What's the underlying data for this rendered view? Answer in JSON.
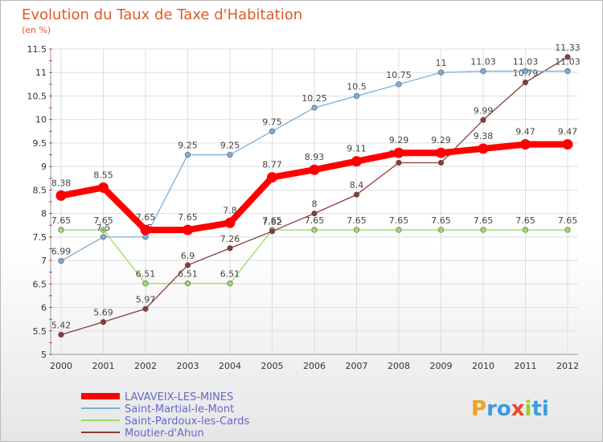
{
  "chart_data": {
    "type": "line",
    "title": "Evolution du Taux de Taxe d'Habitation",
    "subtitle": "(en %)",
    "x": [
      "2000",
      "2001",
      "2002",
      "2003",
      "2004",
      "2005",
      "2006",
      "2007",
      "2008",
      "2009",
      "2010",
      "2011",
      "2012"
    ],
    "y_ticks": [
      "5",
      "5.5",
      "6",
      "6.5",
      "7",
      "7.5",
      "8",
      "8.5",
      "9",
      "9.5",
      "10",
      "10.5",
      "11",
      "11.5"
    ],
    "ylim": [
      5,
      11.5
    ],
    "grid": true,
    "legend_position": "bottom-left",
    "series": [
      {
        "name": "LAVAVEIX-LES-MINES",
        "color": "#ff0000",
        "values": [
          8.38,
          8.55,
          7.65,
          7.65,
          7.8,
          8.77,
          8.93,
          9.11,
          9.29,
          9.29,
          9.38,
          9.47,
          9.47
        ],
        "labels": [
          "8.38",
          "8.55",
          "7.65",
          "7.65",
          "7.8",
          "8.77",
          "8.93",
          "9.11",
          "9.29",
          "9.29",
          "9.38",
          "9.47",
          "9.47"
        ]
      },
      {
        "name": "Saint-Martial-le-Mont",
        "color": "#7aaedb",
        "values": [
          6.99,
          7.5,
          7.5,
          9.25,
          9.25,
          9.75,
          10.25,
          10.5,
          10.75,
          11,
          11.03,
          11.03,
          11.03
        ],
        "labels": [
          "6.99",
          "7.5",
          "7.5",
          "9.25",
          "9.25",
          "9.75",
          "10.25",
          "10.5",
          "10.75",
          "11",
          "11.03",
          "11.03",
          "11.03"
        ]
      },
      {
        "name": "Saint-Pardoux-les-Cards",
        "color": "#99dd66",
        "values": [
          7.65,
          7.65,
          6.51,
          6.51,
          6.51,
          7.65,
          7.65,
          7.65,
          7.65,
          7.65,
          7.65,
          7.65,
          7.65
        ],
        "labels": [
          "7.65",
          "7.65",
          "6.51",
          "6.51",
          "6.51",
          "7.65",
          "7.65",
          "7.65",
          "7.65",
          "7.65",
          "7.65",
          "7.65",
          "7.65"
        ]
      },
      {
        "name": "Moutier-d'Ahun",
        "color": "#8b3a3a",
        "values": [
          5.42,
          5.69,
          5.97,
          6.9,
          7.26,
          7.62,
          8,
          8.4,
          9.08,
          9.08,
          9.99,
          10.79,
          11.33
        ],
        "labels": [
          "5.42",
          "5.69",
          "5.97",
          "6.9",
          "7.26",
          "7.62",
          "8",
          "8.4",
          "9.08",
          "9.08",
          "9.99",
          "10.79",
          "11.33"
        ]
      }
    ]
  },
  "logo": {
    "text": "Proxiti"
  }
}
